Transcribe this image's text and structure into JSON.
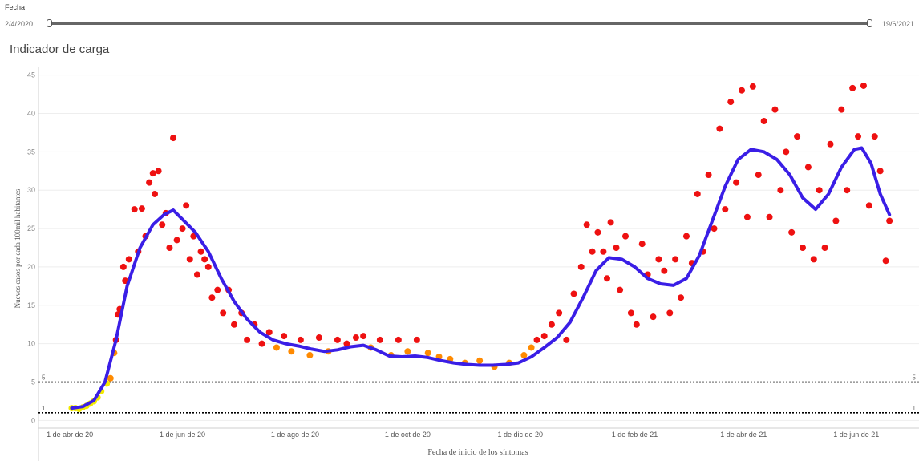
{
  "filter": {
    "label": "Fecha",
    "min_label": "2/4/2020",
    "max_label": "19/6/2021"
  },
  "sheet_title": "Indicador de carga",
  "colors": {
    "trend": "#3a1ee6",
    "above10": "#ee1111",
    "between5and10": "#ff8a00",
    "below5": "#f2ea00",
    "refline": "#000000",
    "grid": "#eeeeee"
  },
  "chart_data": {
    "type": "scatter",
    "xlabel": "Fecha de inicio de los síntomas",
    "ylabel": "Nuevos casos por cada 100mil habitantes",
    "x_range": [
      "2020-03-15",
      "2021-07-05"
    ],
    "ylim": [
      -1,
      46
    ],
    "yticks": [
      0,
      5,
      10,
      15,
      20,
      25,
      30,
      35,
      40,
      45
    ],
    "x_tick_labels": [
      {
        "date": "2020-04-01",
        "label": "1 de abr de 20"
      },
      {
        "date": "2020-06-01",
        "label": "1 de jun de 20"
      },
      {
        "date": "2020-08-01",
        "label": "1 de ago de 20"
      },
      {
        "date": "2020-10-01",
        "label": "1 de oct de 20"
      },
      {
        "date": "2020-12-01",
        "label": "1 de dic de 20"
      },
      {
        "date": "2021-02-01",
        "label": "1 de feb de 21"
      },
      {
        "date": "2021-04-01",
        "label": "1 de abr de 21"
      },
      {
        "date": "2021-06-01",
        "label": "1 de jun de 21"
      }
    ],
    "reference_lines": [
      {
        "value": 5,
        "label": "5"
      },
      {
        "value": 1,
        "label": "1"
      }
    ],
    "grid": true,
    "series": [
      {
        "mark": "line",
        "points": [
          [
            "2020-04-02",
            1.6
          ],
          [
            "2020-04-08",
            1.8
          ],
          [
            "2020-04-14",
            2.6
          ],
          [
            "2020-04-20",
            5.0
          ],
          [
            "2020-04-26",
            10.5
          ],
          [
            "2020-05-02",
            17.5
          ],
          [
            "2020-05-09",
            22.5
          ],
          [
            "2020-05-16",
            25.5
          ],
          [
            "2020-05-22",
            26.8
          ],
          [
            "2020-05-27",
            27.4
          ],
          [
            "2020-06-01",
            26.2
          ],
          [
            "2020-06-08",
            24.5
          ],
          [
            "2020-06-15",
            22.0
          ],
          [
            "2020-06-22",
            18.5
          ],
          [
            "2020-06-29",
            15.5
          ],
          [
            "2020-07-06",
            13.2
          ],
          [
            "2020-07-13",
            11.5
          ],
          [
            "2020-07-20",
            10.5
          ],
          [
            "2020-07-27",
            10.0
          ],
          [
            "2020-08-03",
            9.7
          ],
          [
            "2020-08-10",
            9.3
          ],
          [
            "2020-08-17",
            9.0
          ],
          [
            "2020-08-24",
            9.2
          ],
          [
            "2020-08-31",
            9.6
          ],
          [
            "2020-09-07",
            9.8
          ],
          [
            "2020-09-14",
            9.2
          ],
          [
            "2020-09-21",
            8.4
          ],
          [
            "2020-09-28",
            8.3
          ],
          [
            "2020-10-05",
            8.4
          ],
          [
            "2020-10-12",
            8.2
          ],
          [
            "2020-10-19",
            7.8
          ],
          [
            "2020-10-26",
            7.5
          ],
          [
            "2020-11-02",
            7.3
          ],
          [
            "2020-11-09",
            7.2
          ],
          [
            "2020-11-16",
            7.2
          ],
          [
            "2020-11-23",
            7.3
          ],
          [
            "2020-11-30",
            7.5
          ],
          [
            "2020-12-07",
            8.3
          ],
          [
            "2020-12-14",
            9.5
          ],
          [
            "2020-12-21",
            10.8
          ],
          [
            "2020-12-28",
            12.8
          ],
          [
            "2021-01-04",
            16.0
          ],
          [
            "2021-01-11",
            19.5
          ],
          [
            "2021-01-18",
            21.2
          ],
          [
            "2021-01-25",
            21.0
          ],
          [
            "2021-02-01",
            20.0
          ],
          [
            "2021-02-08",
            18.5
          ],
          [
            "2021-02-15",
            17.8
          ],
          [
            "2021-02-22",
            17.6
          ],
          [
            "2021-03-01",
            18.5
          ],
          [
            "2021-03-08",
            21.5
          ],
          [
            "2021-03-15",
            26.0
          ],
          [
            "2021-03-22",
            30.5
          ],
          [
            "2021-03-29",
            34.0
          ],
          [
            "2021-04-05",
            35.3
          ],
          [
            "2021-04-12",
            35.0
          ],
          [
            "2021-04-19",
            34.0
          ],
          [
            "2021-04-26",
            32.0
          ],
          [
            "2021-05-03",
            29.0
          ],
          [
            "2021-05-10",
            27.5
          ],
          [
            "2021-05-17",
            29.5
          ],
          [
            "2021-05-24",
            33.0
          ],
          [
            "2021-05-31",
            35.3
          ],
          [
            "2021-06-04",
            35.5
          ],
          [
            "2021-06-09",
            33.5
          ],
          [
            "2021-06-14",
            29.5
          ],
          [
            "2021-06-19",
            26.8
          ]
        ]
      },
      {
        "mark": "points",
        "points": [
          [
            "2020-04-02",
            1.6
          ],
          [
            "2020-04-04",
            1.6
          ],
          [
            "2020-04-06",
            1.5
          ],
          [
            "2020-04-08",
            1.7
          ],
          [
            "2020-04-10",
            1.9
          ],
          [
            "2020-04-12",
            2.2
          ],
          [
            "2020-04-14",
            2.5
          ],
          [
            "2020-04-16",
            3.0
          ],
          [
            "2020-04-18",
            3.8
          ],
          [
            "2020-04-21",
            4.8
          ],
          [
            "2020-04-23",
            5.5
          ],
          [
            "2020-04-25",
            8.8
          ],
          [
            "2020-04-26",
            10.5
          ],
          [
            "2020-04-27",
            13.8
          ],
          [
            "2020-04-28",
            14.5
          ],
          [
            "2020-04-30",
            20.0
          ],
          [
            "2020-05-01",
            18.2
          ],
          [
            "2020-05-03",
            21.0
          ],
          [
            "2020-05-06",
            27.5
          ],
          [
            "2020-05-08",
            22.0
          ],
          [
            "2020-05-10",
            27.6
          ],
          [
            "2020-05-12",
            24.0
          ],
          [
            "2020-05-14",
            31.0
          ],
          [
            "2020-05-16",
            32.2
          ],
          [
            "2020-05-17",
            29.5
          ],
          [
            "2020-05-19",
            32.5
          ],
          [
            "2020-05-21",
            25.5
          ],
          [
            "2020-05-23",
            27.0
          ],
          [
            "2020-05-25",
            22.5
          ],
          [
            "2020-05-27",
            36.8
          ],
          [
            "2020-05-29",
            23.5
          ],
          [
            "2020-06-01",
            25.0
          ],
          [
            "2020-06-03",
            28.0
          ],
          [
            "2020-06-05",
            21.0
          ],
          [
            "2020-06-07",
            24.0
          ],
          [
            "2020-06-09",
            19.0
          ],
          [
            "2020-06-11",
            22.0
          ],
          [
            "2020-06-13",
            21.0
          ],
          [
            "2020-06-15",
            20.0
          ],
          [
            "2020-06-17",
            16.0
          ],
          [
            "2020-06-20",
            17.0
          ],
          [
            "2020-06-23",
            14.0
          ],
          [
            "2020-06-26",
            17.0
          ],
          [
            "2020-06-29",
            12.5
          ],
          [
            "2020-07-03",
            14.0
          ],
          [
            "2020-07-06",
            10.5
          ],
          [
            "2020-07-10",
            12.5
          ],
          [
            "2020-07-14",
            10.0
          ],
          [
            "2020-07-18",
            11.5
          ],
          [
            "2020-07-22",
            9.5
          ],
          [
            "2020-07-26",
            11.0
          ],
          [
            "2020-07-30",
            9.0
          ],
          [
            "2020-08-04",
            10.5
          ],
          [
            "2020-08-09",
            8.5
          ],
          [
            "2020-08-14",
            10.8
          ],
          [
            "2020-08-19",
            9.0
          ],
          [
            "2020-08-24",
            10.5
          ],
          [
            "2020-08-29",
            10.0
          ],
          [
            "2020-09-03",
            10.8
          ],
          [
            "2020-09-07",
            11.0
          ],
          [
            "2020-09-11",
            9.5
          ],
          [
            "2020-09-16",
            10.5
          ],
          [
            "2020-09-22",
            8.5
          ],
          [
            "2020-09-26",
            10.5
          ],
          [
            "2020-10-01",
            9.0
          ],
          [
            "2020-10-06",
            10.5
          ],
          [
            "2020-10-12",
            8.8
          ],
          [
            "2020-10-18",
            8.3
          ],
          [
            "2020-10-24",
            8.0
          ],
          [
            "2020-11-01",
            7.5
          ],
          [
            "2020-11-09",
            7.8
          ],
          [
            "2020-11-17",
            7.0
          ],
          [
            "2020-11-25",
            7.5
          ],
          [
            "2020-12-03",
            8.5
          ],
          [
            "2020-12-07",
            9.5
          ],
          [
            "2020-12-10",
            10.5
          ],
          [
            "2020-12-14",
            11.0
          ],
          [
            "2020-12-18",
            12.5
          ],
          [
            "2020-12-22",
            14.0
          ],
          [
            "2020-12-26",
            10.5
          ],
          [
            "2020-12-30",
            16.5
          ],
          [
            "2021-01-03",
            20.0
          ],
          [
            "2021-01-06",
            25.5
          ],
          [
            "2021-01-09",
            22.0
          ],
          [
            "2021-01-12",
            24.5
          ],
          [
            "2021-01-15",
            22.0
          ],
          [
            "2021-01-17",
            18.5
          ],
          [
            "2021-01-19",
            25.8
          ],
          [
            "2021-01-22",
            22.5
          ],
          [
            "2021-01-24",
            17.0
          ],
          [
            "2021-01-27",
            24.0
          ],
          [
            "2021-01-30",
            14.0
          ],
          [
            "2021-02-02",
            12.5
          ],
          [
            "2021-02-05",
            23.0
          ],
          [
            "2021-02-08",
            19.0
          ],
          [
            "2021-02-11",
            13.5
          ],
          [
            "2021-02-14",
            21.0
          ],
          [
            "2021-02-17",
            19.5
          ],
          [
            "2021-02-20",
            14.0
          ],
          [
            "2021-02-23",
            21.0
          ],
          [
            "2021-02-26",
            16.0
          ],
          [
            "2021-03-01",
            24.0
          ],
          [
            "2021-03-04",
            20.5
          ],
          [
            "2021-03-07",
            29.5
          ],
          [
            "2021-03-10",
            22.0
          ],
          [
            "2021-03-13",
            32.0
          ],
          [
            "2021-03-16",
            25.0
          ],
          [
            "2021-03-19",
            38.0
          ],
          [
            "2021-03-22",
            27.5
          ],
          [
            "2021-03-25",
            41.5
          ],
          [
            "2021-03-28",
            31.0
          ],
          [
            "2021-03-31",
            43.0
          ],
          [
            "2021-04-03",
            26.5
          ],
          [
            "2021-04-06",
            43.5
          ],
          [
            "2021-04-09",
            32.0
          ],
          [
            "2021-04-12",
            39.0
          ],
          [
            "2021-04-15",
            26.5
          ],
          [
            "2021-04-18",
            40.5
          ],
          [
            "2021-04-21",
            30.0
          ],
          [
            "2021-04-24",
            35.0
          ],
          [
            "2021-04-27",
            24.5
          ],
          [
            "2021-04-30",
            37.0
          ],
          [
            "2021-05-03",
            22.5
          ],
          [
            "2021-05-06",
            33.0
          ],
          [
            "2021-05-09",
            21.0
          ],
          [
            "2021-05-12",
            30.0
          ],
          [
            "2021-05-15",
            22.5
          ],
          [
            "2021-05-18",
            36.0
          ],
          [
            "2021-05-21",
            26.0
          ],
          [
            "2021-05-24",
            40.5
          ],
          [
            "2021-05-27",
            30.0
          ],
          [
            "2021-05-30",
            43.3
          ],
          [
            "2021-06-02",
            37.0
          ],
          [
            "2021-06-05",
            43.6
          ],
          [
            "2021-06-08",
            28.0
          ],
          [
            "2021-06-11",
            37.0
          ],
          [
            "2021-06-14",
            32.5
          ],
          [
            "2021-06-17",
            20.8
          ],
          [
            "2021-06-19",
            26.0
          ]
        ]
      }
    ]
  }
}
